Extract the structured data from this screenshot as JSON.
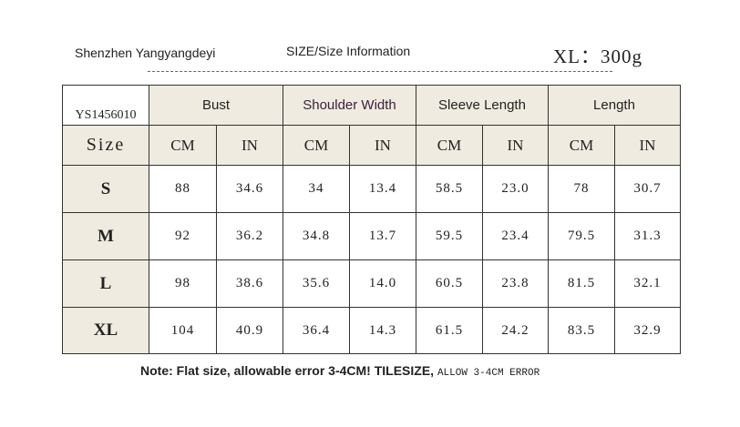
{
  "header": {
    "brand": "Shenzhen Yangyangdeyi",
    "title": "SIZE/Size Information",
    "weight": "XL：300g"
  },
  "table": {
    "code": "YS1456010",
    "size_label": "Size",
    "groups": [
      "Bust",
      "Shoulder Width",
      "Sleeve Length",
      "Length"
    ],
    "units": [
      "CM",
      "IN",
      "CM",
      "IN",
      "CM",
      "IN",
      "CM",
      "IN"
    ],
    "rows": [
      [
        "S",
        "88",
        "34.6",
        "34",
        "13.4",
        "58.5",
        "23.0",
        "78",
        "30.7"
      ],
      [
        "M",
        "92",
        "36.2",
        "34.8",
        "13.7",
        "59.5",
        "23.4",
        "79.5",
        "31.3"
      ],
      [
        "L",
        "98",
        "38.6",
        "35.6",
        "14.0",
        "60.5",
        "23.8",
        "81.5",
        "32.1"
      ],
      [
        "XL",
        "104",
        "40.9",
        "36.4",
        "14.3",
        "61.5",
        "24.2",
        "83.5",
        "32.9"
      ]
    ]
  },
  "note": {
    "text": "Note: Flat size, allowable error 3-4CM! TILESIZE,",
    "suffix": "ALLOW 3-4CM ERROR"
  }
}
